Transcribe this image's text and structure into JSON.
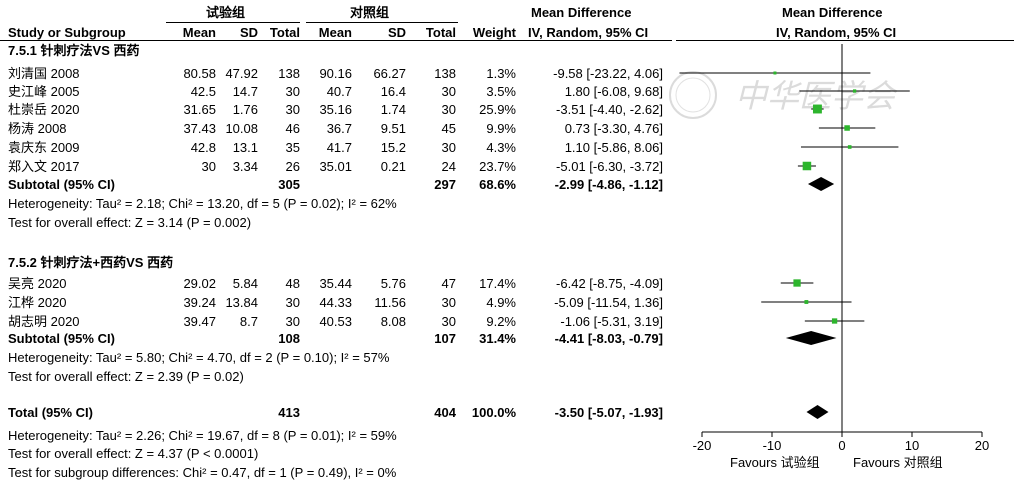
{
  "headers": {
    "exp_group": "试验组",
    "ctrl_group": "对照组",
    "md_left": "Mean Difference",
    "md_right": "Mean Difference",
    "study": "Study or Subgroup",
    "mean1": "Mean",
    "sd1": "SD",
    "total1": "Total",
    "mean2": "Mean",
    "sd2": "SD",
    "total2": "Total",
    "weight": "Weight",
    "method_left": "IV, Random, 95% CI",
    "method_right": "IV, Random, 95% CI"
  },
  "subgroups": [
    {
      "title": "7.5.1 针刺疗法VS 西药",
      "studies": [
        {
          "name": "刘清国 2008",
          "mean1": "80.58",
          "sd1": "47.92",
          "n1": "138",
          "mean2": "90.16",
          "sd2": "66.27",
          "n2": "138",
          "weight": "1.3%",
          "ci": "-9.58 [-23.22, 4.06]",
          "md": -9.58,
          "lo": -23.22,
          "hi": 4.06,
          "w": 1.3
        },
        {
          "name": "史江峰 2005",
          "mean1": "42.5",
          "sd1": "14.7",
          "n1": "30",
          "mean2": "40.7",
          "sd2": "16.4",
          "n2": "30",
          "weight": "3.5%",
          "ci": "1.80 [-6.08, 9.68]",
          "md": 1.8,
          "lo": -6.08,
          "hi": 9.68,
          "w": 3.5
        },
        {
          "name": "杜崇岳 2020",
          "mean1": "31.65",
          "sd1": "1.76",
          "n1": "30",
          "mean2": "35.16",
          "sd2": "1.74",
          "n2": "30",
          "weight": "25.9%",
          "ci": "-3.51 [-4.40, -2.62]",
          "md": -3.51,
          "lo": -4.4,
          "hi": -2.62,
          "w": 25.9
        },
        {
          "name": "杨涛 2008",
          "mean1": "37.43",
          "sd1": "10.08",
          "n1": "46",
          "mean2": "36.7",
          "sd2": "9.51",
          "n2": "45",
          "weight": "9.9%",
          "ci": "0.73 [-3.30, 4.76]",
          "md": 0.73,
          "lo": -3.3,
          "hi": 4.76,
          "w": 9.9
        },
        {
          "name": "袁庆东 2009",
          "mean1": "42.8",
          "sd1": "13.1",
          "n1": "35",
          "mean2": "41.7",
          "sd2": "15.2",
          "n2": "30",
          "weight": "4.3%",
          "ci": "1.10 [-5.86, 8.06]",
          "md": 1.1,
          "lo": -5.86,
          "hi": 8.06,
          "w": 4.3
        },
        {
          "name": "郑入文 2017",
          "mean1": "30",
          "sd1": "3.34",
          "n1": "26",
          "mean2": "35.01",
          "sd2": "0.21",
          "n2": "24",
          "weight": "23.7%",
          "ci": "-5.01 [-6.30, -3.72]",
          "md": -5.01,
          "lo": -6.3,
          "hi": -3.72,
          "w": 23.7
        }
      ],
      "subtotal": {
        "label": "Subtotal (95% CI)",
        "n1": "305",
        "n2": "297",
        "weight": "68.6%",
        "ci": "-2.99 [-4.86, -1.12]",
        "md": -2.99,
        "lo": -4.86,
        "hi": -1.12
      },
      "heterogeneity": "Heterogeneity: Tau² = 2.18; Chi² = 13.20, df = 5 (P = 0.02); I² = 62%",
      "overall": "Test for overall effect: Z = 3.14 (P = 0.002)"
    },
    {
      "title": "7.5.2 针刺疗法+西药VS 西药",
      "studies": [
        {
          "name": "吴亮 2020",
          "mean1": "29.02",
          "sd1": "5.84",
          "n1": "48",
          "mean2": "35.44",
          "sd2": "5.76",
          "n2": "47",
          "weight": "17.4%",
          "ci": "-6.42 [-8.75, -4.09]",
          "md": -6.42,
          "lo": -8.75,
          "hi": -4.09,
          "w": 17.4
        },
        {
          "name": "江桦 2020",
          "mean1": "39.24",
          "sd1": "13.84",
          "n1": "30",
          "mean2": "44.33",
          "sd2": "11.56",
          "n2": "30",
          "weight": "4.9%",
          "ci": "-5.09 [-11.54, 1.36]",
          "md": -5.09,
          "lo": -11.54,
          "hi": 1.36,
          "w": 4.9
        },
        {
          "name": "胡志明 2020",
          "mean1": "39.47",
          "sd1": "8.7",
          "n1": "30",
          "mean2": "40.53",
          "sd2": "8.08",
          "n2": "30",
          "weight": "9.2%",
          "ci": "-1.06 [-5.31, 3.19]",
          "md": -1.06,
          "lo": -5.31,
          "hi": 3.19,
          "w": 9.2
        }
      ],
      "subtotal": {
        "label": "Subtotal (95% CI)",
        "n1": "108",
        "n2": "107",
        "weight": "31.4%",
        "ci": "-4.41 [-8.03, -0.79]",
        "md": -4.41,
        "lo": -8.03,
        "hi": -0.79
      },
      "heterogeneity": "Heterogeneity: Tau² = 5.80; Chi² = 4.70, df = 2 (P = 0.10); I² = 57%",
      "overall": "Test for overall effect: Z = 2.39 (P = 0.02)"
    }
  ],
  "total": {
    "label": "Total (95% CI)",
    "n1": "413",
    "n2": "404",
    "weight": "100.0%",
    "ci": "-3.50 [-5.07, -1.93]",
    "md": -3.5,
    "lo": -5.07,
    "hi": -1.93
  },
  "total_heterogeneity": "Heterogeneity: Tau² = 2.26; Chi² = 19.67, df = 8 (P = 0.01); I² = 59%",
  "total_overall": "Test for overall effect: Z = 4.37 (P < 0.0001)",
  "subgroup_diff": "Test for subgroup differences: Chi² = 0.47, df = 1 (P = 0.49), I² = 0%",
  "axis": {
    "ticks": [
      "-20",
      "-10",
      "0",
      "10",
      "20"
    ],
    "favours_left": "Favours 试验组",
    "favours_right": "Favours 对照组"
  },
  "watermark_text": "中华医学会",
  "colors": {
    "study_marker": "#2db52d",
    "diamond": "#000000",
    "text": "#000000"
  },
  "chart_data": {
    "type": "scatter",
    "xlim": [
      -20,
      20
    ],
    "series": [
      {
        "name": "7.5.1 针刺疗法VS 西药",
        "points": [
          {
            "name": "刘清国 2008",
            "md": -9.58,
            "lo": -23.22,
            "hi": 4.06,
            "weight": 1.3
          },
          {
            "name": "史江峰 2005",
            "md": 1.8,
            "lo": -6.08,
            "hi": 9.68,
            "weight": 3.5
          },
          {
            "name": "杜崇岳 2020",
            "md": -3.51,
            "lo": -4.4,
            "hi": -2.62,
            "weight": 25.9
          },
          {
            "name": "杨涛 2008",
            "md": 0.73,
            "lo": -3.3,
            "hi": 4.76,
            "weight": 9.9
          },
          {
            "name": "袁庆东 2009",
            "md": 1.1,
            "lo": -5.86,
            "hi": 8.06,
            "weight": 4.3
          },
          {
            "name": "郑入文 2017",
            "md": -5.01,
            "lo": -6.3,
            "hi": -3.72,
            "weight": 23.7
          }
        ],
        "subtotal": {
          "md": -2.99,
          "lo": -4.86,
          "hi": -1.12
        }
      },
      {
        "name": "7.5.2 针刺疗法+西药VS 西药",
        "points": [
          {
            "name": "吴亮 2020",
            "md": -6.42,
            "lo": -8.75,
            "hi": -4.09,
            "weight": 17.4
          },
          {
            "name": "江桦 2020",
            "md": -5.09,
            "lo": -11.54,
            "hi": 1.36,
            "weight": 4.9
          },
          {
            "name": "胡志明 2020",
            "md": -1.06,
            "lo": -5.31,
            "hi": 3.19,
            "weight": 9.2
          }
        ],
        "subtotal": {
          "md": -4.41,
          "lo": -8.03,
          "hi": -0.79
        }
      }
    ],
    "total": {
      "md": -3.5,
      "lo": -5.07,
      "hi": -1.93
    },
    "xlabel_left": "Favours 试验组",
    "xlabel_right": "Favours 对照组"
  }
}
